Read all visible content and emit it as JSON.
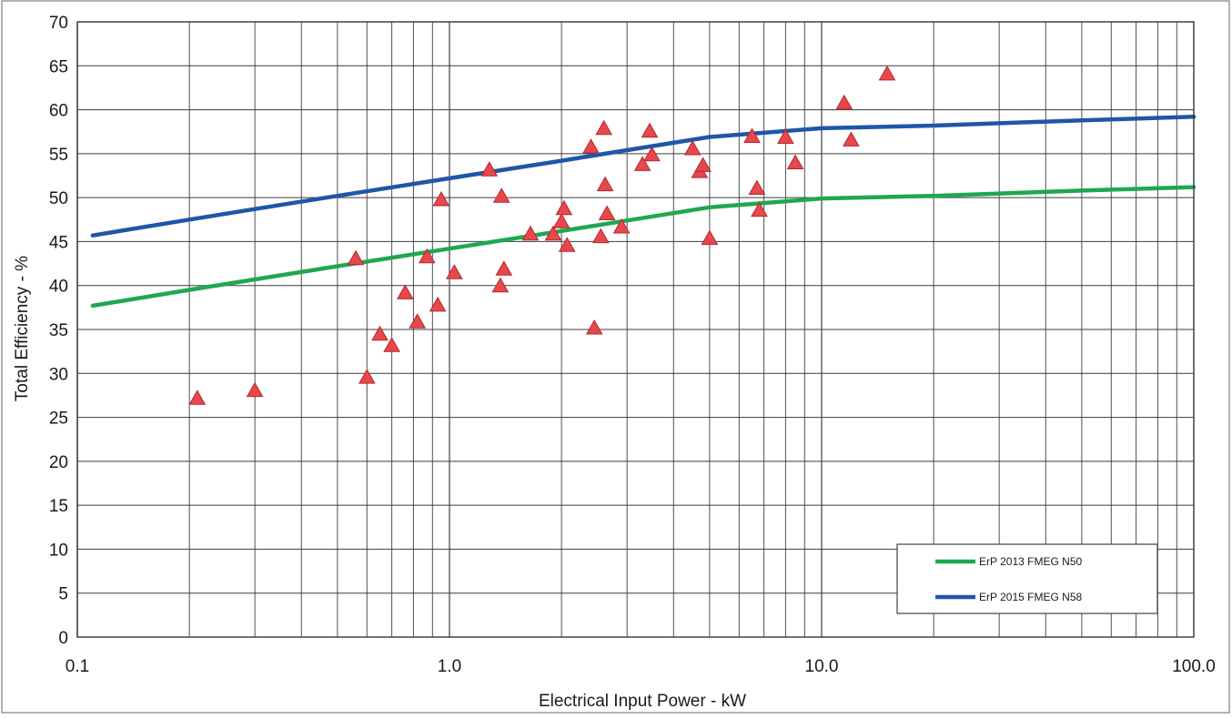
{
  "chart_data": {
    "type": "scatter",
    "title": "",
    "xlabel": "Electrical Input Power - kW",
    "ylabel": "Total Efficiency - %",
    "x_scale": "log",
    "xlim": [
      0.1,
      100.0
    ],
    "ylim": [
      0,
      70
    ],
    "x_ticks": [
      0.1,
      1.0,
      10.0,
      100.0
    ],
    "x_tick_labels": [
      "0.1",
      "1.0",
      "10.0",
      "100.0"
    ],
    "y_ticks": [
      0,
      5,
      10,
      15,
      20,
      25,
      30,
      35,
      40,
      45,
      50,
      55,
      60,
      65,
      70
    ],
    "y_tick_labels": [
      "0",
      "5",
      "10",
      "15",
      "20",
      "25",
      "30",
      "35",
      "40",
      "45",
      "50",
      "55",
      "60",
      "65",
      "70"
    ],
    "grid": true,
    "legend_position": "bottom-right",
    "series": [
      {
        "name": "ErP 2013 FMEG N50",
        "kind": "line",
        "color": "#1fa84f",
        "x": [
          0.11,
          0.2,
          0.3,
          0.5,
          1.0,
          2.0,
          3.0,
          5.0,
          10.0,
          20.0,
          50.0,
          100.0
        ],
        "y": [
          37.7,
          39.5,
          40.7,
          42.2,
          44.2,
          46.2,
          47.4,
          48.9,
          49.9,
          50.2,
          50.8,
          51.2
        ]
      },
      {
        "name": "ErP 2015 FMEG N58",
        "kind": "line",
        "color": "#1f56a8",
        "x": [
          0.11,
          0.2,
          0.3,
          0.5,
          1.0,
          2.0,
          3.0,
          5.0,
          10.0,
          20.0,
          50.0,
          100.0
        ],
        "y": [
          45.7,
          47.5,
          48.7,
          50.2,
          52.2,
          54.2,
          55.4,
          56.9,
          57.9,
          58.2,
          58.8,
          59.2
        ]
      },
      {
        "kind": "scatter",
        "marker": "triangle",
        "color": "#e8474c",
        "x": [
          0.21,
          0.3,
          0.56,
          0.6,
          0.65,
          0.7,
          0.76,
          0.82,
          0.87,
          0.93,
          0.95,
          1.03,
          1.28,
          1.37,
          1.38,
          1.4,
          1.65,
          1.9,
          2.0,
          2.03,
          2.07,
          2.4,
          2.45,
          2.55,
          2.6,
          2.62,
          2.65,
          2.9,
          3.3,
          3.45,
          3.5,
          4.5,
          4.7,
          4.8,
          5.0,
          6.5,
          6.7,
          6.8,
          8.0,
          8.5,
          11.5,
          12.0,
          15.0
        ],
        "y": [
          27.1,
          28.0,
          43.0,
          29.5,
          34.4,
          33.1,
          39.1,
          35.8,
          43.2,
          37.7,
          49.7,
          41.4,
          53.1,
          39.9,
          50.1,
          41.8,
          45.8,
          45.8,
          47.2,
          48.7,
          44.5,
          55.7,
          35.1,
          45.5,
          57.8,
          51.4,
          48.1,
          46.6,
          53.7,
          57.5,
          54.8,
          55.5,
          52.9,
          53.6,
          45.3,
          56.9,
          51.0,
          48.5,
          56.8,
          53.9,
          60.7,
          56.5,
          64.0
        ]
      }
    ]
  }
}
